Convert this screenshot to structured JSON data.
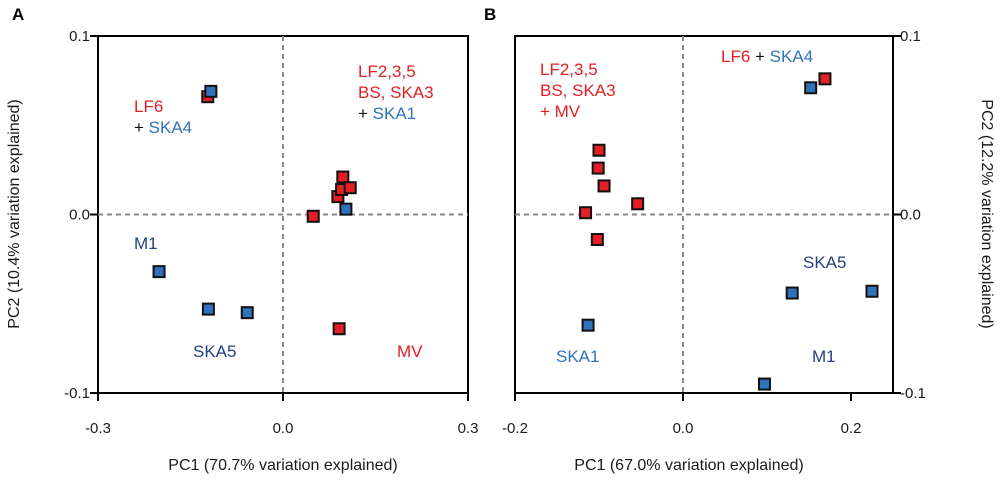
{
  "chart_data": [
    {
      "panel": "A",
      "type": "scatter",
      "xlabel": "PC1 (70.7% variation explained)",
      "ylabel": "PC2 (10.4% variation explained)",
      "xlim": [
        -0.3,
        0.3
      ],
      "ylim": [
        -0.1,
        0.1
      ],
      "xticks": [
        "-0.3",
        "0.0",
        "0.3"
      ],
      "yticks": [
        "0.1",
        "0.0",
        "-0.1"
      ],
      "series": [
        {
          "name": "red",
          "color": "#e31e24",
          "points": [
            [
              -0.122,
              0.066
            ],
            [
              0.049,
              -0.001
            ],
            [
              0.089,
              0.01
            ],
            [
              0.095,
              0.014
            ],
            [
              0.097,
              0.021
            ],
            [
              0.109,
              0.015
            ],
            [
              0.091,
              -0.064
            ]
          ]
        },
        {
          "name": "blue",
          "color": "#2f72bc",
          "points": [
            [
              -0.117,
              0.069
            ],
            [
              0.102,
              0.003
            ],
            [
              -0.201,
              -0.032
            ],
            [
              -0.121,
              -0.053
            ],
            [
              -0.058,
              -0.055
            ]
          ]
        }
      ],
      "annotations": [
        {
          "lines": [
            [
              {
                "t": "LF6",
                "c": "red"
              }
            ],
            [
              {
                "t": "+ ",
                "c": "blk"
              },
              {
                "t": "SKA4",
                "c": "blue"
              }
            ]
          ]
        },
        {
          "lines": [
            [
              {
                "t": "LF2,3,5",
                "c": "red"
              }
            ],
            [
              {
                "t": "BS, SKA3",
                "c": "red"
              }
            ],
            [
              {
                "t": "+ ",
                "c": "blk"
              },
              {
                "t": "SKA1",
                "c": "blue"
              }
            ]
          ]
        },
        {
          "lines": [
            [
              {
                "t": "M1",
                "c": "dblue"
              }
            ]
          ]
        },
        {
          "lines": [
            [
              {
                "t": "SKA5",
                "c": "dblue"
              }
            ]
          ]
        },
        {
          "lines": [
            [
              {
                "t": "MV",
                "c": "red"
              }
            ]
          ]
        }
      ]
    },
    {
      "panel": "B",
      "type": "scatter",
      "xlabel": "PC1 (67.0% variation explained)",
      "ylabel": "PC2 (12.2% variation explained)",
      "xlim": [
        -0.2,
        0.25
      ],
      "ylim": [
        -0.1,
        0.1
      ],
      "xticks": [
        "-0.2",
        "0.0",
        "0.2"
      ],
      "yticks": [
        "0.1",
        "0.0",
        "-0.1"
      ],
      "series": [
        {
          "name": "red",
          "color": "#e31e24",
          "points": [
            [
              0.169,
              0.076
            ],
            [
              -0.1,
              0.036
            ],
            [
              -0.101,
              0.026
            ],
            [
              -0.094,
              0.016
            ],
            [
              -0.054,
              0.006
            ],
            [
              -0.116,
              0.001
            ],
            [
              -0.102,
              -0.014
            ]
          ]
        },
        {
          "name": "blue",
          "color": "#2f72bc",
          "points": [
            [
              0.152,
              0.071
            ],
            [
              -0.113,
              -0.062
            ],
            [
              0.13,
              -0.044
            ],
            [
              0.225,
              -0.043
            ],
            [
              0.097,
              -0.095
            ]
          ]
        }
      ],
      "annotations": [
        {
          "lines": [
            [
              {
                "t": "LF2,3,5",
                "c": "red"
              }
            ],
            [
              {
                "t": "BS, SKA3",
                "c": "red"
              }
            ],
            [
              {
                "t": "+ MV",
                "c": "red"
              }
            ]
          ]
        },
        {
          "lines": [
            [
              {
                "t": "LF6",
                "c": "red"
              },
              {
                "t": " + ",
                "c": "blk"
              },
              {
                "t": "SKA4",
                "c": "blue"
              }
            ]
          ]
        },
        {
          "lines": [
            [
              {
                "t": "SKA5",
                "c": "dblue"
              }
            ]
          ]
        },
        {
          "lines": [
            [
              {
                "t": "SKA1",
                "c": "blue"
              }
            ]
          ]
        },
        {
          "lines": [
            [
              {
                "t": "M1",
                "c": "dblue"
              }
            ]
          ]
        }
      ]
    }
  ]
}
